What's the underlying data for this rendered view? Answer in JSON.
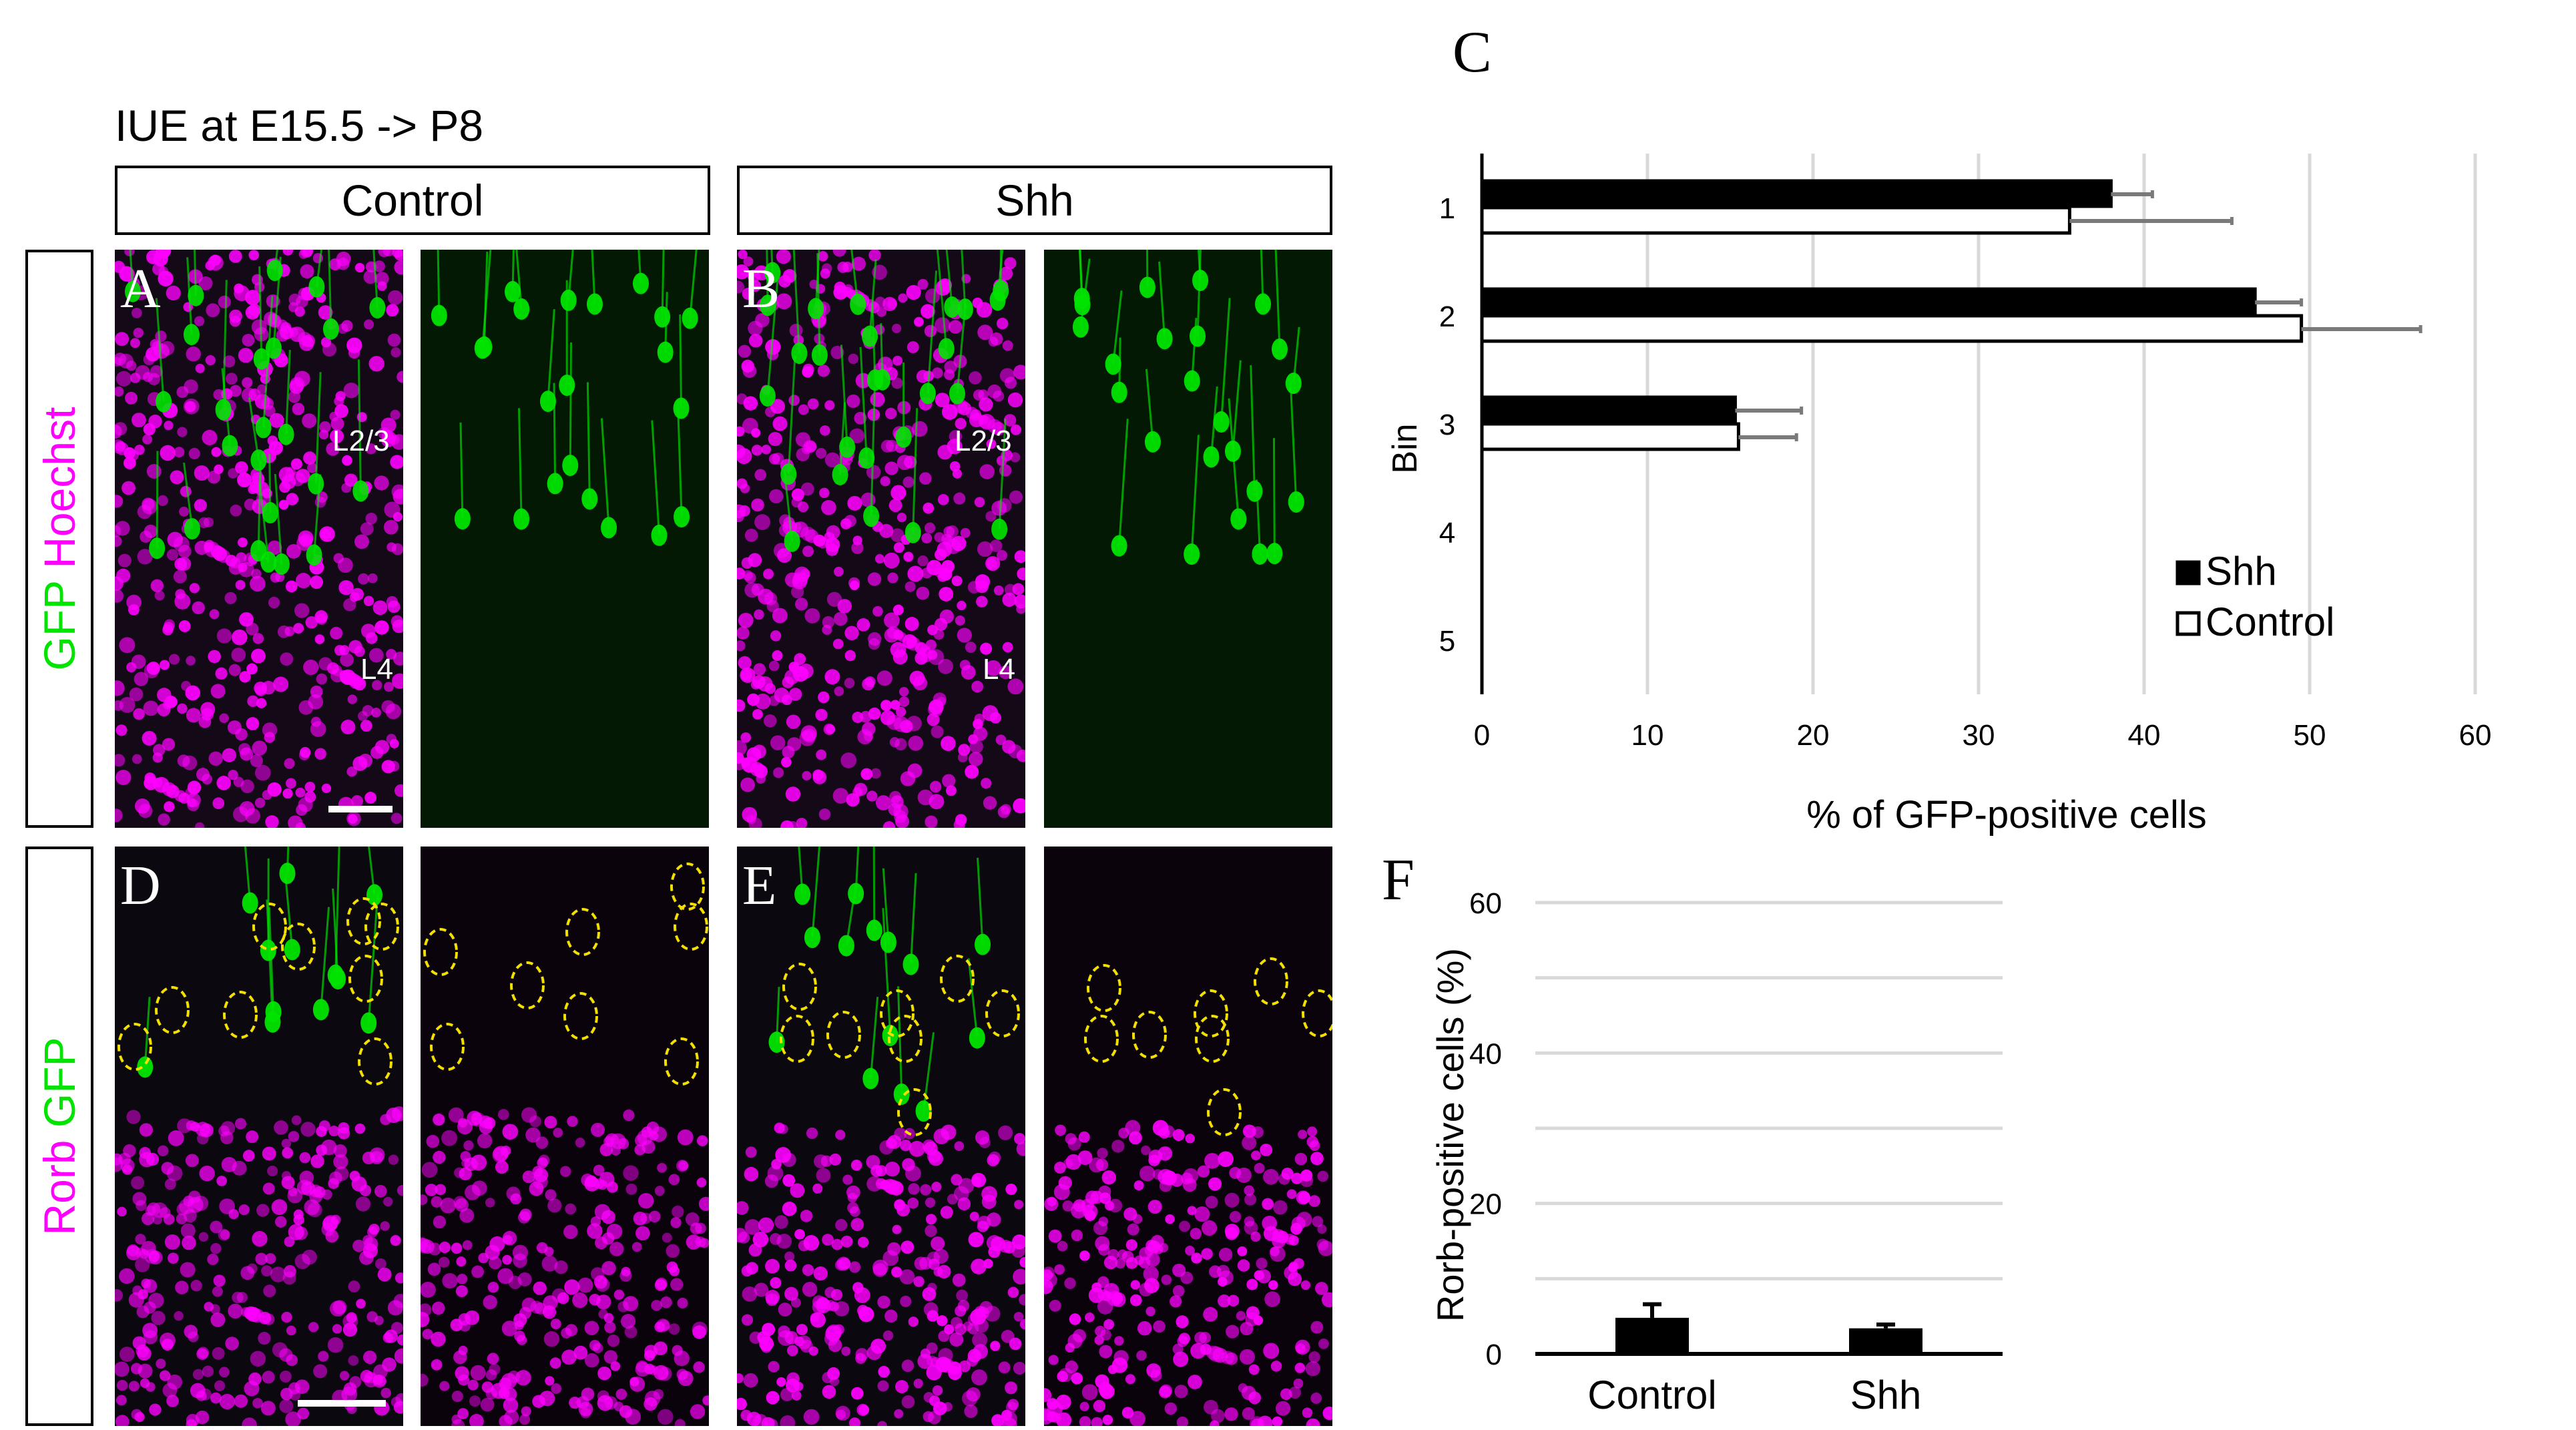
{
  "figure": {
    "title": "IUE at E15.5 -> P8",
    "columns": {
      "control": "Control",
      "shh": "Shh"
    },
    "rows": {
      "top": {
        "marker1": "GFP",
        "marker2": "Hoechst",
        "marker1_color": "#00e400",
        "marker2_color": "#ff00ff"
      },
      "bottom": {
        "marker1": "Rorb",
        "marker2": "GFP",
        "marker1_color": "#ff00ff",
        "marker2_color": "#00e400"
      }
    },
    "panel_letters": {
      "a": "A",
      "b": "B",
      "c": "C",
      "d": "D",
      "e": "E",
      "f": "F"
    },
    "layer_labels": {
      "upper": "L2/3",
      "lower": "L4"
    },
    "colors": {
      "gfp": "#00e400",
      "hoechst": "#ff00ff",
      "rorb": "#ff00ff",
      "outline": "#f4e000"
    }
  },
  "chart_data": [
    {
      "id": "C",
      "type": "bar",
      "orientation": "horizontal",
      "categories": [
        "1",
        "2",
        "3",
        "4",
        "5"
      ],
      "series": [
        {
          "name": "Shh",
          "fill": "#000000",
          "values": [
            38,
            46.7,
            15.3,
            0,
            0
          ],
          "errors": [
            2.5,
            2.8,
            4,
            0,
            0
          ]
        },
        {
          "name": "Control",
          "fill": "#ffffff",
          "values": [
            35.5,
            49.5,
            15.5,
            0,
            0
          ],
          "errors": [
            9.8,
            7.2,
            3.5,
            0,
            0
          ]
        }
      ],
      "xlabel": "% of GFP-positive cells",
      "ylabel": "Bin",
      "xlim": [
        0,
        60
      ],
      "xticks": [
        "0",
        "10",
        "20",
        "30",
        "40",
        "50",
        "60"
      ],
      "grid": true,
      "legend": "bottom-right"
    },
    {
      "id": "F",
      "type": "bar",
      "categories": [
        "Control",
        "Shh"
      ],
      "values": [
        4.8,
        3.4
      ],
      "errors": [
        1.8,
        0.5
      ],
      "ylabel": "Rorb-positive cells (%)",
      "ylim": [
        0,
        60
      ],
      "yticks": [
        "0",
        "20",
        "40",
        "60"
      ],
      "grid": true
    }
  ]
}
